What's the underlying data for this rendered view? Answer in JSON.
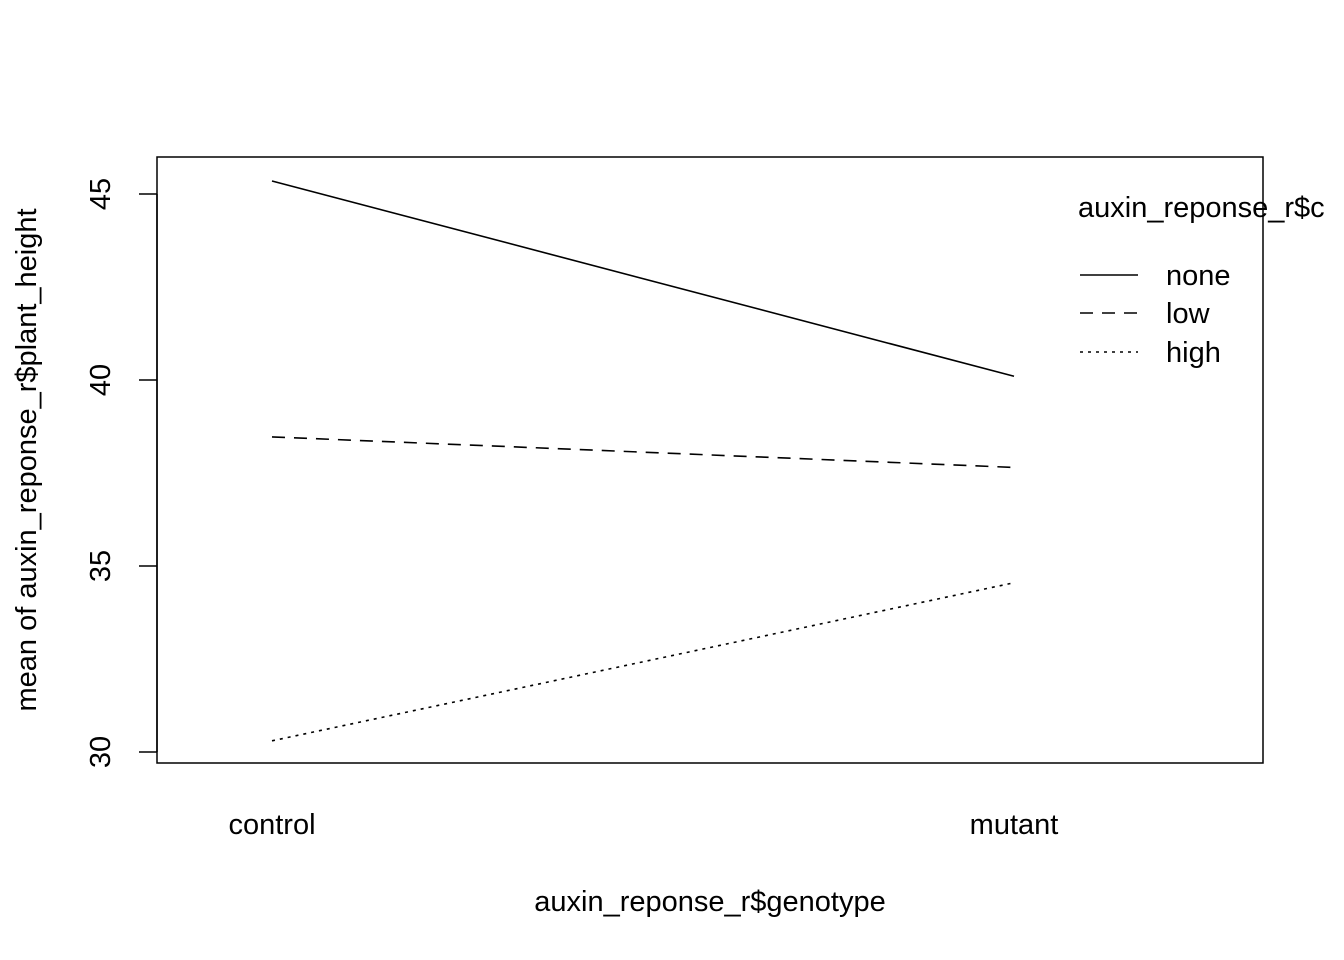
{
  "chart_data": {
    "type": "line",
    "xlabel": "auxin_reponse_r$genotype",
    "ylabel": "mean of  auxin_reponse_r$plant_height",
    "categories": [
      "control",
      "mutant"
    ],
    "ylim": [
      29.7,
      46.0
    ],
    "yticks": [
      30,
      35,
      40,
      45
    ],
    "grid": false,
    "legend": {
      "title": "auxin_reponse_r$concentration",
      "title_visible": "auxin_reponse_r$c",
      "placement": "top-right"
    },
    "series": [
      {
        "name": "none",
        "values": [
          45.35,
          40.1
        ],
        "linestyle": "solid"
      },
      {
        "name": "low",
        "values": [
          38.47,
          37.65
        ],
        "linestyle": "dashed"
      },
      {
        "name": "high",
        "values": [
          30.3,
          34.55
        ],
        "linestyle": "dotted"
      }
    ],
    "colors": {
      "line": "#000000",
      "background": "#ffffff"
    }
  }
}
